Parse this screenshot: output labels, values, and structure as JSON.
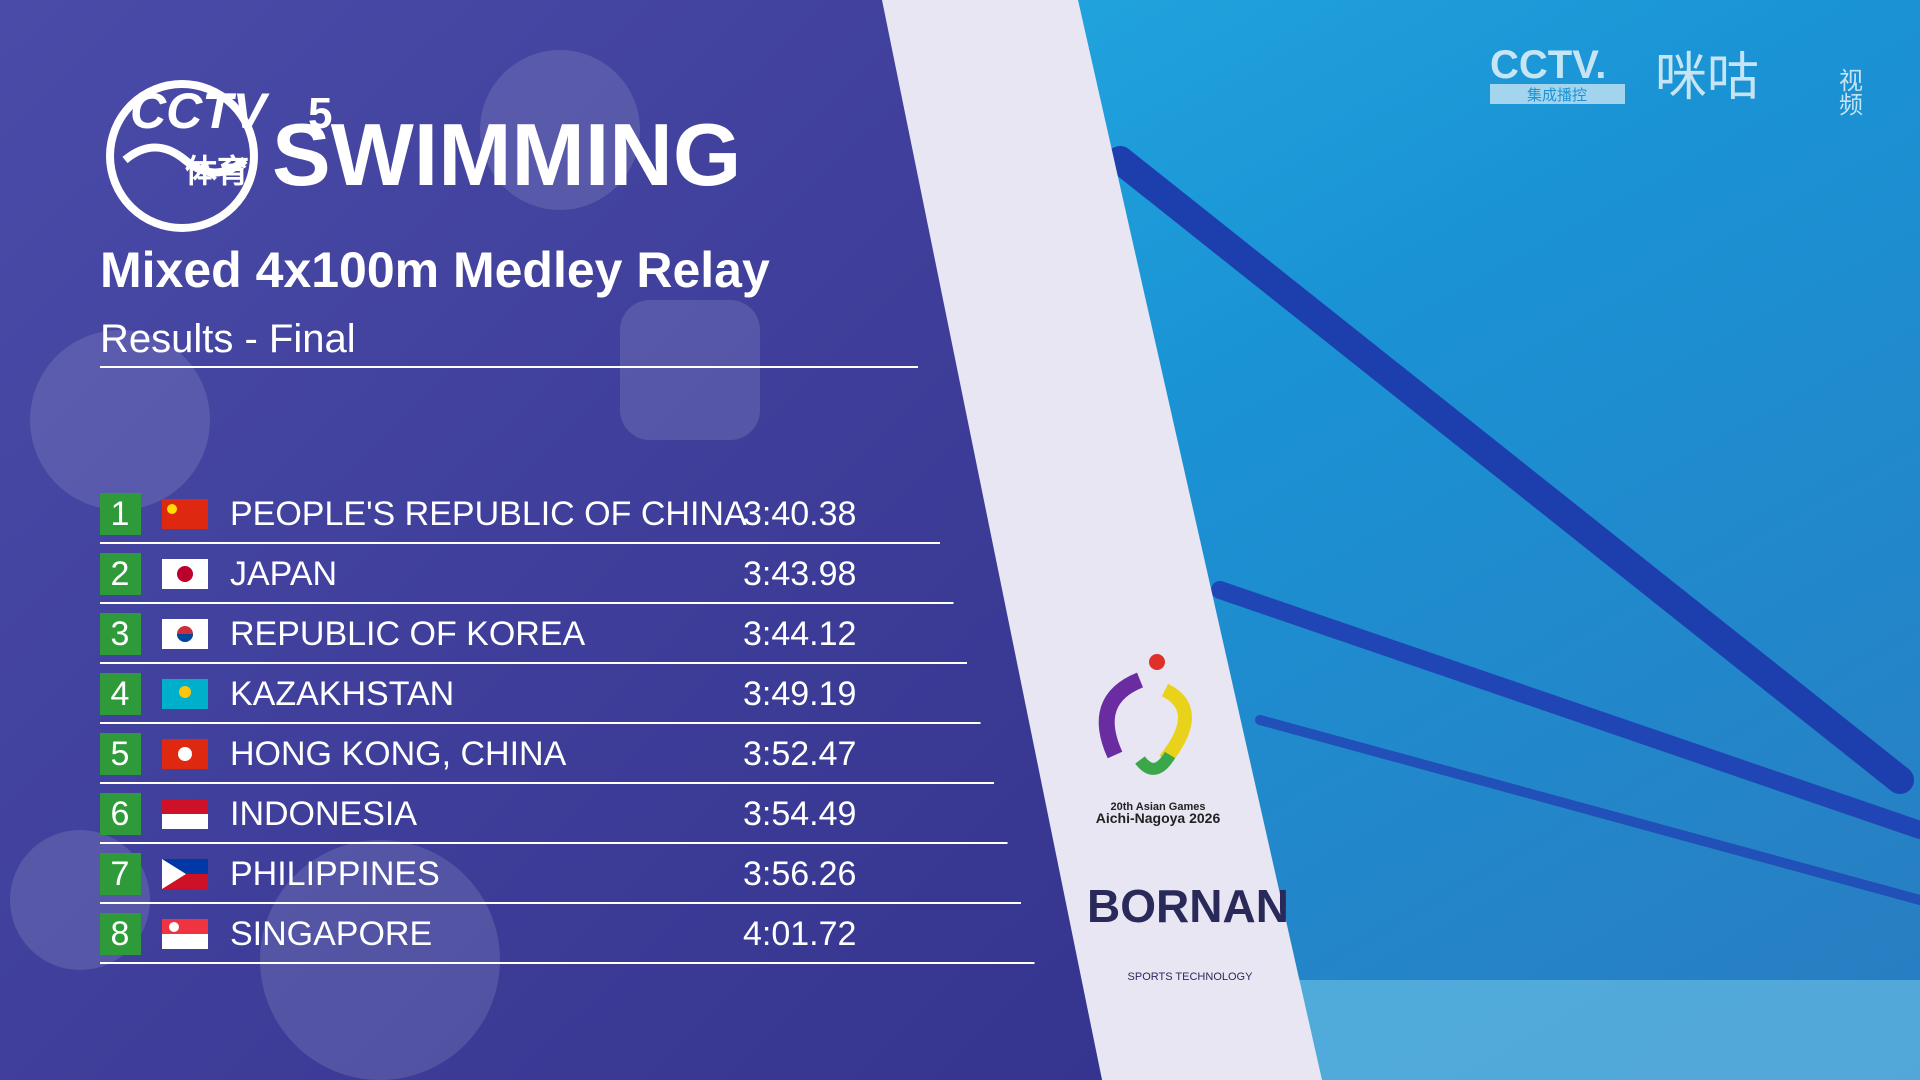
{
  "broadcaster": {
    "channel": "CCTV",
    "number": "5",
    "sport": "体育",
    "corner": "CCTV.",
    "corner_sub": "集成播控",
    "partner": "咪咕",
    "partner_sub": "视频"
  },
  "header": {
    "title": "SWIMMING",
    "event": "Mixed 4x100m Medley Relay",
    "subtitle": "Results - Final"
  },
  "table": {
    "rows": [
      [
        1,
        "PEOPLE'S REPUBLIC OF CHINA",
        "3:40.38"
      ],
      [
        2,
        "JAPAN",
        "3:43.98"
      ],
      [
        3,
        "REPUBLIC OF KOREA",
        "3:44.12"
      ],
      [
        4,
        "KAZAKHSTAN",
        "3:49.19"
      ],
      [
        5,
        "HONG KONG, CHINA",
        "3:52.47"
      ],
      [
        6,
        "INDONESIA",
        "3:54.49"
      ],
      [
        7,
        "PHILIPPINES",
        "3:56.26"
      ],
      [
        8,
        "SINGAPORE",
        "4:01.72"
      ]
    ]
  },
  "sponsors": {
    "games": "20th Asian Games",
    "games_city": "Aichi-Nagoya 2026",
    "timing": "BORNAN",
    "timing_sub": "SPORTS TECHNOLOGY"
  }
}
